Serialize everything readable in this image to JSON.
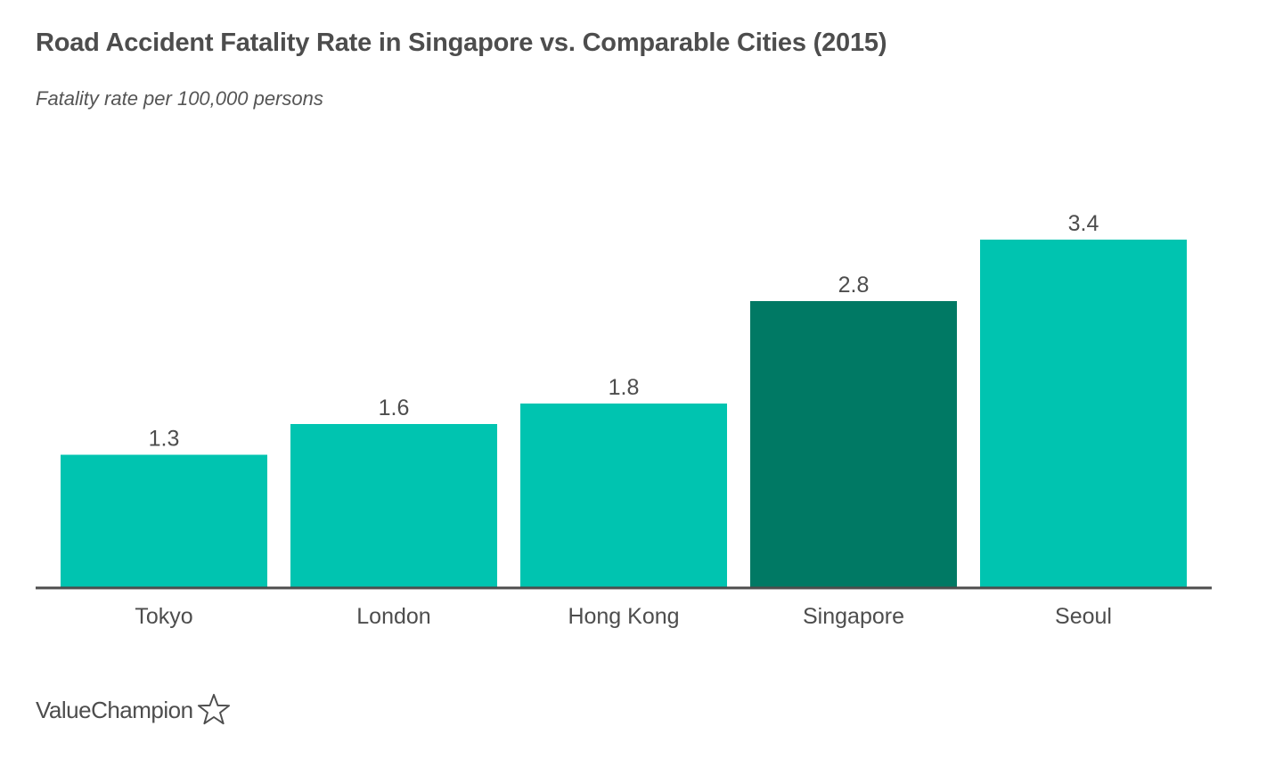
{
  "chart_data": {
    "type": "bar",
    "title": "Road Accident Fatality Rate in Singapore vs. Comparable Cities (2015)",
    "subtitle": "Fatality rate per 100,000 persons",
    "categories": [
      "Tokyo",
      "London",
      "Hong Kong",
      "Singapore",
      "Seoul"
    ],
    "values": [
      1.3,
      1.6,
      1.8,
      2.8,
      3.4
    ],
    "value_labels": [
      "1.3",
      "1.6",
      "1.8",
      "2.8",
      "3.4"
    ],
    "highlight_category": "Singapore",
    "ylim": [
      0,
      3.4
    ],
    "grid": false,
    "legend": "none",
    "colors": {
      "bar": "#00c4b0",
      "highlight": "#007964",
      "axis": "#4d4d4d",
      "text": "#4d4d4d"
    }
  },
  "brand": {
    "name": "ValueChampion",
    "icon": "star-outline-icon"
  }
}
